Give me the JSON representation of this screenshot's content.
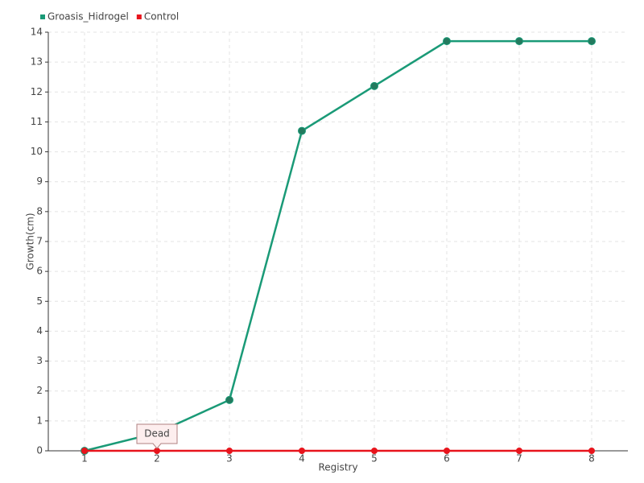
{
  "chart_data": {
    "type": "line",
    "x_label": "Registry",
    "y_label": "Growth(cm)",
    "x": [
      1,
      2,
      3,
      4,
      5,
      6,
      7,
      8
    ],
    "series": [
      {
        "name": "Groasis_Hidrogel",
        "color": "#1a9a77",
        "values": [
          0,
          0.6,
          1.7,
          10.7,
          12.2,
          13.7,
          13.7,
          13.7
        ]
      },
      {
        "name": "Control",
        "color": "#e8141c",
        "values": [
          0,
          0,
          0,
          0,
          0,
          0,
          0,
          0
        ]
      }
    ],
    "xlim": [
      0.5,
      8.5
    ],
    "xticks": [
      1,
      2,
      3,
      4,
      5,
      6,
      7,
      8
    ],
    "ylim": [
      0,
      14
    ],
    "yticks": [
      0,
      1,
      2,
      3,
      4,
      5,
      6,
      7,
      8,
      9,
      10,
      11,
      12,
      13,
      14
    ],
    "grid": true,
    "legend": "top-left",
    "annotations": [
      {
        "text": "Dead",
        "x": 2,
        "y": 0
      }
    ]
  }
}
